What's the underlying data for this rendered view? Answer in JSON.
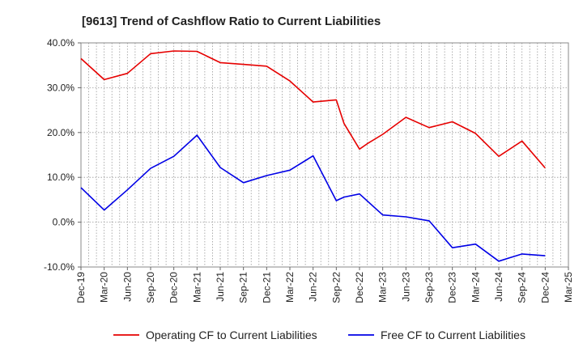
{
  "chart_data": {
    "type": "line",
    "title": "[9613]  Trend of Cashflow Ratio to Current Liabilities",
    "xlabel": "",
    "ylabel": "",
    "ylim": [
      -10,
      40
    ],
    "y_ticks": [
      -10,
      0,
      10,
      20,
      30,
      40
    ],
    "y_tick_labels": [
      "-10.0%",
      "0.0%",
      "10.0%",
      "20.0%",
      "30.0%",
      "40.0%"
    ],
    "x_tick_labels": [
      "Dec-19",
      "Mar-20",
      "Jun-20",
      "Sep-20",
      "Dec-20",
      "Mar-21",
      "Jun-21",
      "Sep-21",
      "Dec-21",
      "Mar-22",
      "Jun-22",
      "Sep-22",
      "Dec-22",
      "Mar-23",
      "Jun-23",
      "Sep-23",
      "Dec-23",
      "Mar-24",
      "Jun-24",
      "Sep-24",
      "Dec-24",
      "Mar-25"
    ],
    "grid": true,
    "legend_position": "bottom",
    "series": [
      {
        "name": "Operating CF to Current Liabilities",
        "color": "#e60000",
        "points": [
          [
            "Dec-19",
            36.5
          ],
          [
            "Mar-20",
            31.8
          ],
          [
            "Jun-20",
            33.2
          ],
          [
            "Sep-20",
            37.6
          ],
          [
            "Dec-20",
            38.2
          ],
          [
            "Mar-21",
            38.1
          ],
          [
            "Jun-21",
            35.6
          ],
          [
            "Sep-21",
            35.2
          ],
          [
            "Dec-21",
            34.8
          ],
          [
            "Mar-22",
            31.5
          ],
          [
            "Jun-22",
            26.8
          ],
          [
            "Sep-22",
            27.3
          ],
          [
            "Oct-22",
            22.0
          ],
          [
            "Dec-22",
            16.3
          ],
          [
            "Jan-23",
            17.5
          ],
          [
            "Mar-23",
            19.6
          ],
          [
            "Jun-23",
            23.4
          ],
          [
            "Sep-23",
            21.1
          ],
          [
            "Dec-23",
            22.4
          ],
          [
            "Mar-24",
            19.8
          ],
          [
            "Jun-24",
            14.7
          ],
          [
            "Sep-24",
            18.1
          ],
          [
            "Dec-24",
            12.1
          ]
        ]
      },
      {
        "name": "Free CF to Current Liabilities",
        "color": "#0000e6",
        "points": [
          [
            "Dec-19",
            7.7
          ],
          [
            "Mar-20",
            2.7
          ],
          [
            "Jun-20",
            7.2
          ],
          [
            "Sep-20",
            12.0
          ],
          [
            "Dec-20",
            14.7
          ],
          [
            "Mar-21",
            19.4
          ],
          [
            "Jun-21",
            12.2
          ],
          [
            "Sep-21",
            8.8
          ],
          [
            "Dec-21",
            10.4
          ],
          [
            "Mar-22",
            11.6
          ],
          [
            "Jun-22",
            14.8
          ],
          [
            "Sep-22",
            4.8
          ],
          [
            "Oct-22",
            5.6
          ],
          [
            "Dec-22",
            6.3
          ],
          [
            "Mar-23",
            1.6
          ],
          [
            "Jun-23",
            1.2
          ],
          [
            "Sep-23",
            0.3
          ],
          [
            "Dec-23",
            -5.7
          ],
          [
            "Mar-24",
            -4.9
          ],
          [
            "Jun-24",
            -8.7
          ],
          [
            "Sep-24",
            -7.1
          ],
          [
            "Dec-24",
            -7.5
          ]
        ]
      }
    ]
  }
}
